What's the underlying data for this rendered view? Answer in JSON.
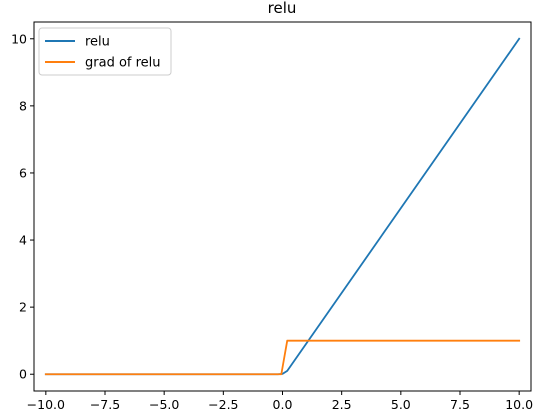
{
  "chart_data": {
    "type": "line",
    "title": "relu",
    "xlabel": "",
    "ylabel": "",
    "xlim": [
      -10.5,
      10.5
    ],
    "ylim": [
      -0.5,
      10.5
    ],
    "xticks": [
      -10.0,
      -7.5,
      -5.0,
      -2.5,
      0.0,
      2.5,
      5.0,
      7.5,
      10.0
    ],
    "xtick_labels": [
      "−10.0",
      "−7.5",
      "−5.0",
      "−2.5",
      "0.0",
      "2.5",
      "5.0",
      "7.5",
      "10.0"
    ],
    "yticks": [
      0,
      2,
      4,
      6,
      8,
      10
    ],
    "ytick_labels": [
      "0",
      "2",
      "4",
      "6",
      "8",
      "10"
    ],
    "grid": false,
    "legend_position": "top-left",
    "series": [
      {
        "name": "relu",
        "color": "#1f77b4",
        "x": [
          -10.0,
          -0.2,
          0.0,
          0.2,
          10.0
        ],
        "y": [
          0.0,
          0.0,
          0.01,
          0.1,
          10.0
        ]
      },
      {
        "name": "grad of relu",
        "color": "#ff7f0e",
        "x": [
          -10.0,
          -0.05,
          0.2,
          10.0
        ],
        "y": [
          0.0,
          0.0,
          1.0,
          1.0
        ]
      }
    ]
  }
}
